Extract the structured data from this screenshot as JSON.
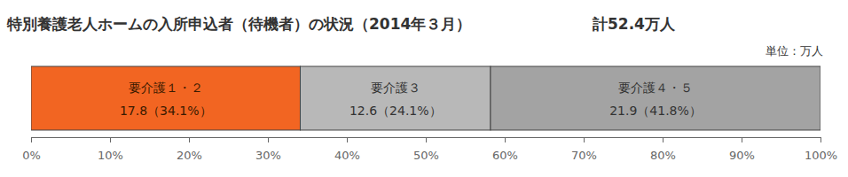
{
  "chart_data": {
    "type": "bar",
    "title": "特別養護老人ホームの入所申込者（待機者）の状況（2014年３月）",
    "subtitle": "計52.4万人",
    "annotations": [
      "単位：万人"
    ],
    "orientation": "horizontal",
    "stacked": true,
    "data_labels": true,
    "grid": false,
    "tick_labels": "x",
    "categories": [
      null
    ],
    "series": [
      {
        "name": "要介護１・２",
        "color": "#f26522",
        "values": [
          34.1
        ],
        "value_labels": [
          "17.8（34.1%）"
        ]
      },
      {
        "name": "要介護３",
        "color": "#b8b8b8",
        "values": [
          24.1
        ],
        "value_labels": [
          "12.6（24.1%）"
        ]
      },
      {
        "name": "要介護４・５",
        "color": "#a3a3a3",
        "values": [
          41.8
        ],
        "value_labels": [
          "21.9（41.8%）"
        ]
      }
    ],
    "xlim": [
      0,
      100
    ],
    "xticks": [
      {
        "value": 0,
        "label": "0%"
      },
      {
        "value": 10,
        "label": "10%"
      },
      {
        "value": 20,
        "label": "20%"
      },
      {
        "value": 30,
        "label": "30%"
      },
      {
        "value": 40,
        "label": "40%"
      },
      {
        "value": 50,
        "label": "50%"
      },
      {
        "value": 60,
        "label": "60%"
      },
      {
        "value": 70,
        "label": "70%"
      },
      {
        "value": 80,
        "label": "80%"
      },
      {
        "value": 90,
        "label": "90%"
      },
      {
        "value": 100,
        "label": "100%"
      }
    ]
  }
}
